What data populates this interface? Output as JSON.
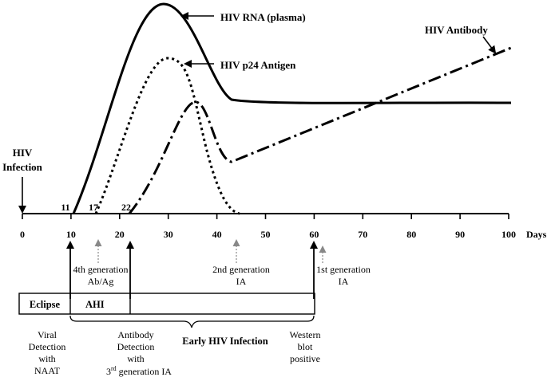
{
  "infection": {
    "line1": "HIV",
    "line2": "Infection"
  },
  "curve_labels": {
    "rna": "HIV RNA (plasma)",
    "p24": "HIV p24 Antigen",
    "antibody": "HIV Antibody"
  },
  "day_markers": {
    "d11": "11",
    "d17": "17",
    "d22": "22"
  },
  "axis": {
    "ticks": [
      "0",
      "10",
      "20",
      "30",
      "40",
      "50",
      "60",
      "70",
      "80",
      "90",
      "100"
    ],
    "unit": "Days"
  },
  "test_labels": {
    "fourth_gen_line1": "4th generation",
    "fourth_gen_line2": "Ab/Ag",
    "second_gen_line1": "2nd generation",
    "second_gen_line2": "IA",
    "first_gen_line1": "1st generation",
    "first_gen_line2": "IA"
  },
  "phases": {
    "eclipse": "Eclipse",
    "ahi": "AHI",
    "early": "Early HIV Infection"
  },
  "bottom_notes": {
    "viral_l1": "Viral",
    "viral_l2": "Detection",
    "viral_l3": "with",
    "viral_l4": "NAAT",
    "ab_l1": "Antibody",
    "ab_l2": "Detection",
    "ab_l3": "with",
    "ab_l4_pre": "3",
    "ab_l4_sup": "rd",
    "ab_l4_post": " generation IA",
    "wb_l1": "Western",
    "wb_l2": "blot",
    "wb_l3": "positive"
  }
}
